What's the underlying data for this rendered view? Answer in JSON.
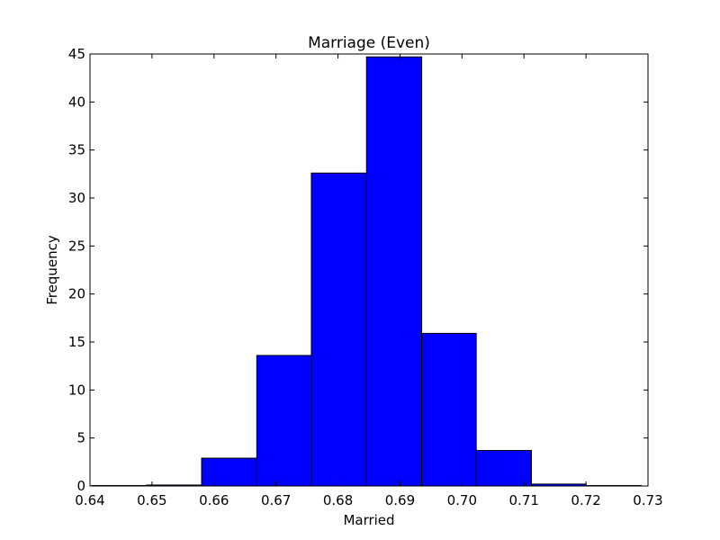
{
  "chart_data": {
    "type": "bar",
    "title": "Marriage (Even)",
    "xlabel": "Married",
    "ylabel": "Frequency",
    "xlim": [
      0.64,
      0.73
    ],
    "ylim": [
      0,
      45
    ],
    "xticks": [
      "0.64",
      "0.65",
      "0.66",
      "0.67",
      "0.68",
      "0.69",
      "0.70",
      "0.71",
      "0.72",
      "0.73"
    ],
    "yticks": [
      "0",
      "5",
      "10",
      "15",
      "20",
      "25",
      "30",
      "35",
      "40",
      "45"
    ],
    "bin_edges": [
      0.6403,
      0.6491,
      0.658,
      0.6669,
      0.6757,
      0.6846,
      0.6935,
      0.7023,
      0.7112,
      0.72,
      0.7289
    ],
    "values": [
      0.05,
      0.1,
      2.9,
      13.6,
      32.6,
      44.7,
      15.9,
      3.7,
      0.2,
      0.05
    ],
    "bar_color": "#0000ff",
    "edge_color": "#000000",
    "grid": false,
    "legend": "none"
  }
}
